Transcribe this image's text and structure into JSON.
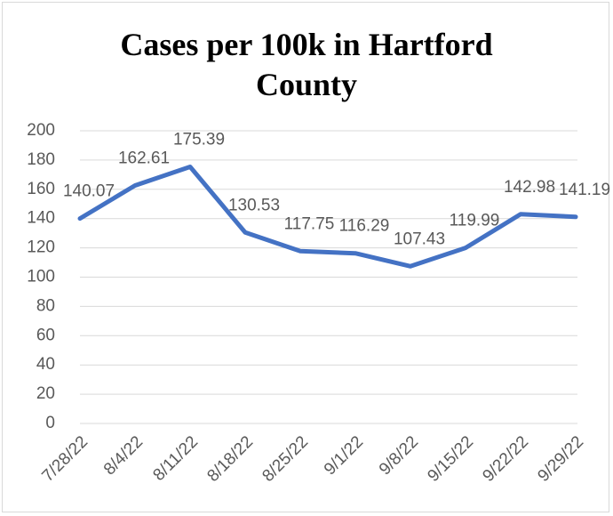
{
  "chart_data": {
    "type": "line",
    "title": "Cases per 100k in Hartford County",
    "categories": [
      "7/28/22",
      "8/4/22",
      "8/11/22",
      "8/18/22",
      "8/25/22",
      "9/1/22",
      "9/8/22",
      "9/15/22",
      "9/22/22",
      "9/29/22"
    ],
    "series": [
      {
        "name": "Cases per 100k",
        "color": "#4472c4",
        "values": [
          140.07,
          162.61,
          175.39,
          130.53,
          117.75,
          116.29,
          107.43,
          119.99,
          142.98,
          141.19
        ]
      }
    ],
    "ylim": [
      0,
      200
    ],
    "yticks": [
      0,
      20,
      40,
      60,
      80,
      100,
      120,
      140,
      160,
      180,
      200
    ],
    "grid": true
  }
}
